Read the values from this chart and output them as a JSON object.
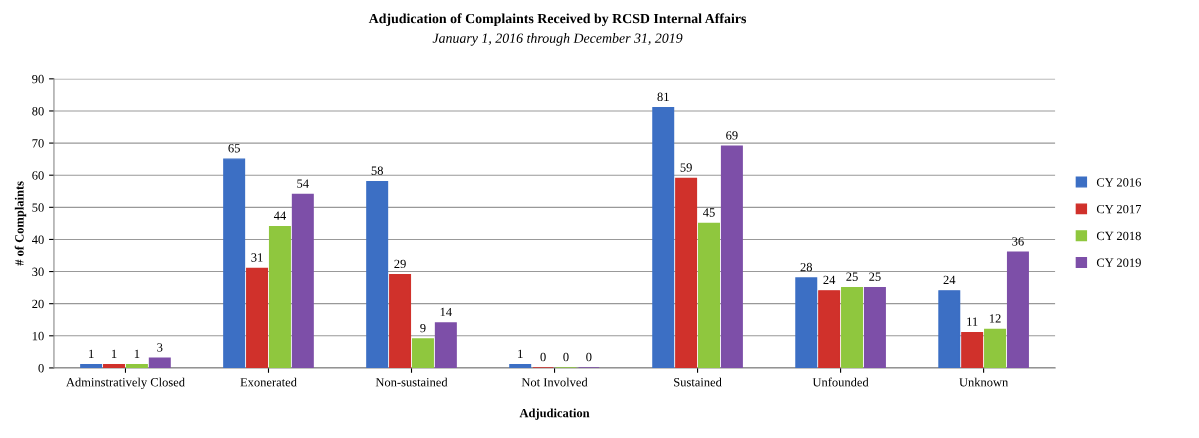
{
  "chart_data": {
    "type": "bar",
    "title": "Adjudication of Complaints Received by RCSD Internal Affairs",
    "subtitle": "January 1, 2016 through December 31, 2019",
    "xlabel": "Adjudication",
    "ylabel": "# of Complaints",
    "categories": [
      "Adminstratively Closed",
      "Exonerated",
      "Non-sustained",
      "Not Involved",
      "Sustained",
      "Unfounded",
      "Unknown"
    ],
    "series": [
      {
        "name": "CY 2016",
        "color": "#3c6fc4",
        "values": [
          1,
          65,
          58,
          1,
          81,
          28,
          24
        ]
      },
      {
        "name": "CY 2017",
        "color": "#d0312b",
        "values": [
          1,
          31,
          29,
          0,
          59,
          24,
          11
        ]
      },
      {
        "name": "CY 2018",
        "color": "#8fc73e",
        "values": [
          1,
          44,
          9,
          0,
          45,
          25,
          12
        ]
      },
      {
        "name": "CY 2019",
        "color": "#7d4fa8",
        "values": [
          3,
          54,
          14,
          0,
          69,
          25,
          36
        ]
      }
    ],
    "ylim": [
      0,
      90
    ],
    "yticks": [
      0,
      10,
      20,
      30,
      40,
      50,
      60,
      70,
      80,
      90
    ],
    "grid": "y",
    "legend": "right",
    "data_labels": true
  }
}
